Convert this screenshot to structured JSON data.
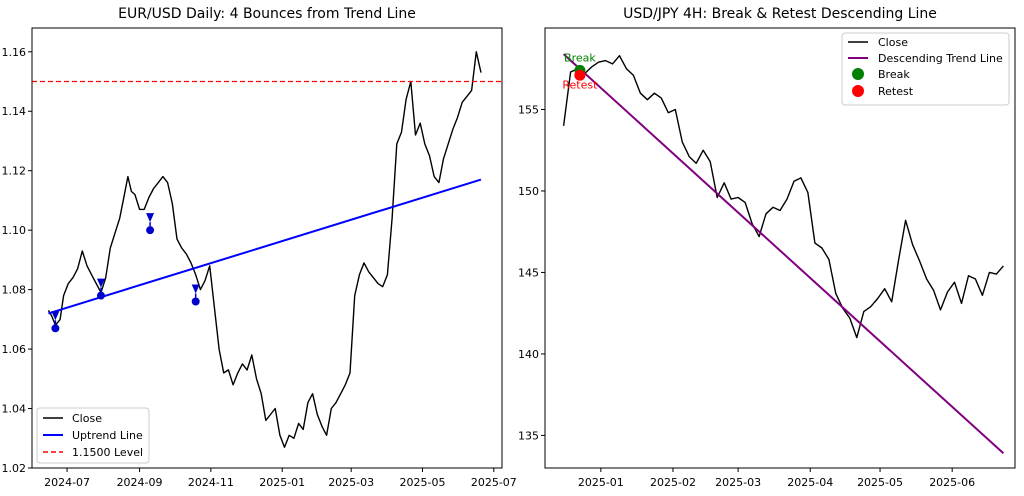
{
  "chart_data": [
    {
      "type": "line",
      "title": "EUR/USD Daily: 4 Bounces from Trend Line",
      "xlabel": "",
      "ylabel": "",
      "xlim": [
        "2024-06-01",
        "2025-07-08"
      ],
      "ylim": [
        1.02,
        1.168
      ],
      "xticks": [
        "2024-07",
        "2024-09",
        "2024-11",
        "2025-01",
        "2025-03",
        "2025-05",
        "2025-07"
      ],
      "yticks": [
        "1.02",
        "1.04",
        "1.06",
        "1.08",
        "1.10",
        "1.12",
        "1.14",
        "1.16"
      ],
      "grid": false,
      "legend": {
        "placement": "lower left",
        "entries": [
          "Close",
          "Uptrend Line",
          "1.1500 Level"
        ]
      },
      "colors": {
        "close": "#000000",
        "uptrend": "#0000ff",
        "level": "#ff0000",
        "markers": "#0000cc"
      },
      "series": [
        {
          "name": "Close",
          "x": [
            "2024-06-15",
            "2024-06-18",
            "2024-06-21",
            "2024-06-25",
            "2024-06-28",
            "2024-07-02",
            "2024-07-06",
            "2024-07-10",
            "2024-07-14",
            "2024-07-18",
            "2024-07-22",
            "2024-07-26",
            "2024-07-30",
            "2024-08-03",
            "2024-08-07",
            "2024-08-11",
            "2024-08-15",
            "2024-08-19",
            "2024-08-22",
            "2024-08-25",
            "2024-08-28",
            "2024-09-01",
            "2024-09-05",
            "2024-09-09",
            "2024-09-13",
            "2024-09-17",
            "2024-09-21",
            "2024-09-25",
            "2024-09-29",
            "2024-10-03",
            "2024-10-07",
            "2024-10-11",
            "2024-10-15",
            "2024-10-19",
            "2024-10-23",
            "2024-10-27",
            "2024-10-31",
            "2024-11-04",
            "2024-11-08",
            "2024-11-12",
            "2024-11-16",
            "2024-11-20",
            "2024-11-24",
            "2024-11-28",
            "2024-12-02",
            "2024-12-06",
            "2024-12-10",
            "2024-12-14",
            "2024-12-18",
            "2024-12-22",
            "2024-12-26",
            "2024-12-30",
            "2025-01-03",
            "2025-01-07",
            "2025-01-11",
            "2025-01-15",
            "2025-01-19",
            "2025-01-23",
            "2025-01-27",
            "2025-01-31",
            "2025-02-04",
            "2025-02-08",
            "2025-02-12",
            "2025-02-16",
            "2025-02-20",
            "2025-02-24",
            "2025-02-28",
            "2025-03-04",
            "2025-03-08",
            "2025-03-12",
            "2025-03-16",
            "2025-03-20",
            "2025-03-24",
            "2025-03-28",
            "2025-04-01",
            "2025-04-05",
            "2025-04-09",
            "2025-04-13",
            "2025-04-17",
            "2025-04-21",
            "2025-04-25",
            "2025-04-29",
            "2025-05-03",
            "2025-05-07",
            "2025-05-11",
            "2025-05-15",
            "2025-05-19",
            "2025-05-23",
            "2025-05-27",
            "2025-05-31",
            "2025-06-04",
            "2025-06-08",
            "2025-06-12",
            "2025-06-16",
            "2025-06-20"
          ],
          "values": [
            1.073,
            1.071,
            1.068,
            1.07,
            1.078,
            1.082,
            1.084,
            1.087,
            1.093,
            1.088,
            1.085,
            1.082,
            1.079,
            1.084,
            1.094,
            1.099,
            1.104,
            1.112,
            1.118,
            1.113,
            1.112,
            1.107,
            1.107,
            1.111,
            1.114,
            1.116,
            1.118,
            1.116,
            1.109,
            1.097,
            1.094,
            1.092,
            1.089,
            1.085,
            1.08,
            1.083,
            1.088,
            1.074,
            1.06,
            1.052,
            1.053,
            1.048,
            1.052,
            1.055,
            1.053,
            1.058,
            1.05,
            1.045,
            1.036,
            1.038,
            1.04,
            1.031,
            1.027,
            1.031,
            1.03,
            1.035,
            1.033,
            1.042,
            1.045,
            1.038,
            1.034,
            1.031,
            1.04,
            1.042,
            1.045,
            1.048,
            1.052,
            1.078,
            1.085,
            1.089,
            1.086,
            1.084,
            1.082,
            1.081,
            1.085,
            1.104,
            1.129,
            1.133,
            1.144,
            1.15,
            1.132,
            1.136,
            1.129,
            1.125,
            1.118,
            1.116,
            1.124,
            1.129,
            1.134,
            1.138,
            1.143,
            1.145,
            1.147,
            1.16,
            1.153
          ]
        },
        {
          "name": "Uptrend Line",
          "x": [
            "2024-06-15",
            "2025-06-20"
          ],
          "values": [
            1.072,
            1.117
          ]
        },
        {
          "name": "1.1500 Level",
          "x": [
            "2024-06-01",
            "2025-07-08"
          ],
          "values": [
            1.15,
            1.15
          ]
        }
      ],
      "bounces": {
        "x": [
          "2024-06-21",
          "2024-07-30",
          "2024-09-10",
          "2024-10-19"
        ],
        "values": [
          1.067,
          1.078,
          1.1,
          1.076
        ]
      }
    },
    {
      "type": "line",
      "title": "USD/JPY 4H: Break & Retest Descending Line",
      "xlabel": "",
      "ylabel": "",
      "xlim": [
        "2024-12-08",
        "2025-06-28"
      ],
      "ylim": [
        133,
        160
      ],
      "xticks": [
        "2025-01",
        "2025-02",
        "2025-03",
        "2025-04",
        "2025-05",
        "2025-06"
      ],
      "yticks": [
        "135",
        "140",
        "145",
        "150",
        "155"
      ],
      "grid": false,
      "legend": {
        "placement": "upper right",
        "entries": [
          "Close",
          "Descending Trend Line",
          "Break",
          "Retest"
        ]
      },
      "colors": {
        "close": "#000000",
        "trend": "#800080",
        "break": "#008000",
        "retest": "#ff0000"
      },
      "series": [
        {
          "name": "Close",
          "x": [
            "2024-12-16",
            "2024-12-19",
            "2024-12-22",
            "2024-12-25",
            "2024-12-28",
            "2024-12-31",
            "2025-01-03",
            "2025-01-06",
            "2025-01-09",
            "2025-01-12",
            "2025-01-15",
            "2025-01-18",
            "2025-01-21",
            "2025-01-24",
            "2025-01-27",
            "2025-01-30",
            "2025-02-02",
            "2025-02-05",
            "2025-02-08",
            "2025-02-11",
            "2025-02-14",
            "2025-02-17",
            "2025-02-20",
            "2025-02-23",
            "2025-02-26",
            "2025-03-01",
            "2025-03-04",
            "2025-03-07",
            "2025-03-10",
            "2025-03-13",
            "2025-03-16",
            "2025-03-19",
            "2025-03-22",
            "2025-03-25",
            "2025-03-28",
            "2025-03-31",
            "2025-04-03",
            "2025-04-06",
            "2025-04-09",
            "2025-04-12",
            "2025-04-15",
            "2025-04-18",
            "2025-04-21",
            "2025-04-24",
            "2025-04-27",
            "2025-04-30",
            "2025-05-03",
            "2025-05-06",
            "2025-05-09",
            "2025-05-12",
            "2025-05-15",
            "2025-05-18",
            "2025-05-21",
            "2025-05-24",
            "2025-05-27",
            "2025-05-30",
            "2025-06-02",
            "2025-06-05",
            "2025-06-08",
            "2025-06-11",
            "2025-06-14",
            "2025-06-17",
            "2025-06-20",
            "2025-06-23"
          ],
          "values": [
            154.0,
            157.3,
            157.5,
            157.2,
            157.6,
            157.9,
            158.0,
            157.8,
            158.3,
            157.5,
            157.1,
            156.0,
            155.6,
            156.0,
            155.7,
            154.8,
            155.0,
            153.0,
            152.1,
            151.7,
            152.5,
            151.8,
            149.6,
            150.5,
            149.5,
            149.6,
            149.3,
            148.0,
            147.2,
            148.6,
            149.0,
            148.8,
            149.5,
            150.6,
            150.8,
            149.9,
            146.8,
            146.5,
            145.8,
            143.7,
            142.8,
            142.2,
            141.0,
            142.6,
            142.9,
            143.4,
            144.0,
            143.2,
            145.8,
            148.2,
            146.7,
            145.7,
            144.6,
            143.9,
            142.7,
            143.8,
            144.4,
            143.1,
            144.8,
            144.6,
            143.6,
            145.0,
            144.9,
            145.4
          ]
        },
        {
          "name": "Descending Trend Line",
          "x": [
            "2024-12-16",
            "2025-06-23"
          ],
          "values": [
            158.4,
            133.9
          ]
        }
      ],
      "markers": [
        {
          "name": "Break",
          "x": "2024-12-23",
          "value": 157.4,
          "label": "Break"
        },
        {
          "name": "Retest",
          "x": "2024-12-23",
          "value": 157.1,
          "label": "Retest"
        }
      ]
    }
  ]
}
